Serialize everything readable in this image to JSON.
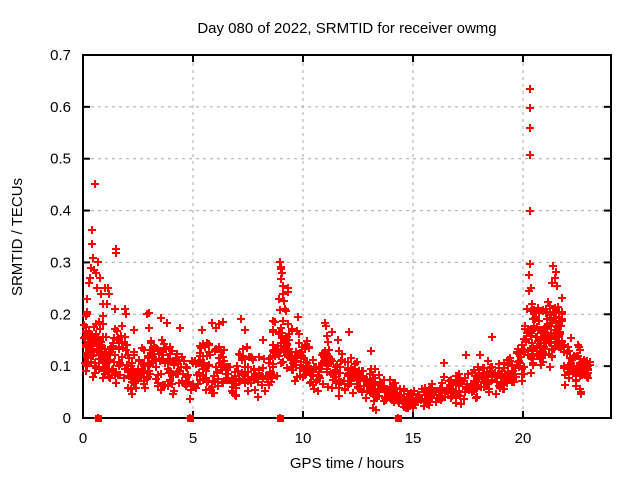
{
  "chart_data": {
    "type": "scatter",
    "title": "Day 080 of 2022, SRMTID for receiver owmg",
    "xlabel": "GPS time / hours",
    "ylabel": "SRMTID / TECUs",
    "xlim": [
      0,
      24
    ],
    "ylim": [
      0,
      0.7
    ],
    "grid": true,
    "legend": "none",
    "marker": "plus",
    "marker_color": "#ff0000",
    "grid_color": "#a8a8a8",
    "frame_color": "#000000",
    "xticks": [
      0,
      5,
      10,
      15,
      20
    ],
    "xtick_labels": [
      "0",
      "5",
      "10",
      "15",
      "20"
    ],
    "yticks": [
      0,
      0.1,
      0.2,
      0.3,
      0.4,
      0.5,
      0.6,
      0.7
    ],
    "ytick_labels": [
      "0",
      "0.1",
      "0.2",
      "0.3",
      "0.4",
      "0.5",
      "0.6",
      "0.7"
    ],
    "cluster_format": [
      "x_start_hours",
      "width_hours",
      "n_points",
      "y_min_TECUs",
      "y_max_TECUs"
    ],
    "clusters": [
      [
        0.05,
        0.25,
        28,
        0.07,
        0.22
      ],
      [
        0.3,
        0.3,
        30,
        0.07,
        0.21
      ],
      [
        0.6,
        0.4,
        32,
        0.06,
        0.2
      ],
      [
        1.0,
        0.5,
        26,
        0.05,
        0.18
      ],
      [
        1.5,
        0.5,
        26,
        0.05,
        0.19
      ],
      [
        2.0,
        0.5,
        22,
        0.03,
        0.14
      ],
      [
        2.5,
        0.5,
        24,
        0.04,
        0.17
      ],
      [
        3.0,
        0.5,
        24,
        0.05,
        0.18
      ],
      [
        3.5,
        0.5,
        24,
        0.04,
        0.17
      ],
      [
        4.0,
        0.5,
        22,
        0.04,
        0.15
      ],
      [
        4.5,
        0.5,
        20,
        0.03,
        0.12
      ],
      [
        5.0,
        0.5,
        22,
        0.04,
        0.15
      ],
      [
        5.5,
        0.5,
        24,
        0.04,
        0.16
      ],
      [
        6.0,
        0.5,
        24,
        0.04,
        0.15
      ],
      [
        6.5,
        0.5,
        22,
        0.03,
        0.11
      ],
      [
        7.0,
        0.5,
        24,
        0.04,
        0.16
      ],
      [
        7.5,
        0.5,
        22,
        0.04,
        0.13
      ],
      [
        8.0,
        0.6,
        26,
        0.04,
        0.13
      ],
      [
        8.6,
        0.7,
        46,
        0.05,
        0.22
      ],
      [
        9.3,
        0.5,
        26,
        0.05,
        0.19
      ],
      [
        9.8,
        0.5,
        26,
        0.05,
        0.17
      ],
      [
        10.3,
        0.5,
        22,
        0.04,
        0.12
      ],
      [
        10.8,
        0.6,
        26,
        0.05,
        0.16
      ],
      [
        11.4,
        0.5,
        24,
        0.04,
        0.14
      ],
      [
        11.9,
        0.5,
        24,
        0.04,
        0.13
      ],
      [
        12.4,
        0.5,
        22,
        0.03,
        0.12
      ],
      [
        12.9,
        0.5,
        22,
        0.03,
        0.11
      ],
      [
        13.4,
        0.45,
        20,
        0.02,
        0.09
      ],
      [
        13.85,
        0.45,
        20,
        0.02,
        0.08
      ],
      [
        14.3,
        0.5,
        20,
        0.01,
        0.06
      ],
      [
        14.8,
        0.5,
        20,
        0.01,
        0.055
      ],
      [
        15.3,
        0.5,
        20,
        0.015,
        0.065
      ],
      [
        15.8,
        0.5,
        20,
        0.02,
        0.07
      ],
      [
        16.3,
        0.5,
        20,
        0.02,
        0.08
      ],
      [
        16.8,
        0.5,
        20,
        0.025,
        0.09
      ],
      [
        17.3,
        0.5,
        20,
        0.03,
        0.1
      ],
      [
        17.8,
        0.5,
        22,
        0.03,
        0.11
      ],
      [
        18.3,
        0.5,
        22,
        0.04,
        0.12
      ],
      [
        18.8,
        0.5,
        22,
        0.04,
        0.12
      ],
      [
        19.3,
        0.4,
        22,
        0.05,
        0.13
      ],
      [
        19.7,
        0.4,
        24,
        0.06,
        0.17
      ],
      [
        20.1,
        0.4,
        30,
        0.07,
        0.22
      ],
      [
        20.5,
        0.4,
        35,
        0.08,
        0.22
      ],
      [
        20.9,
        0.5,
        46,
        0.09,
        0.24
      ],
      [
        21.4,
        0.4,
        40,
        0.1,
        0.25
      ],
      [
        21.8,
        0.5,
        24,
        0.05,
        0.15
      ],
      [
        22.3,
        0.4,
        26,
        0.04,
        0.14
      ],
      [
        22.7,
        0.35,
        22,
        0.06,
        0.125
      ]
    ],
    "outlier_points": [
      [
        0.2,
        0.23
      ],
      [
        0.25,
        0.26
      ],
      [
        0.3,
        0.27
      ],
      [
        0.35,
        0.29
      ],
      [
        0.4,
        0.363
      ],
      [
        0.42,
        0.336
      ],
      [
        0.45,
        0.309
      ],
      [
        0.5,
        0.285
      ],
      [
        0.55,
        0.451
      ],
      [
        0.6,
        0.28
      ],
      [
        0.65,
        0.25
      ],
      [
        0.7,
        0.3
      ],
      [
        0.75,
        0.27
      ],
      [
        0.8,
        0.24
      ],
      [
        0.9,
        0.22
      ],
      [
        1.0,
        0.25
      ],
      [
        1.1,
        0.22
      ],
      [
        1.15,
        0.25
      ],
      [
        1.2,
        0.24
      ],
      [
        1.45,
        0.21
      ],
      [
        1.5,
        0.326
      ],
      [
        1.52,
        0.318
      ],
      [
        1.9,
        0.21
      ],
      [
        1.95,
        0.2
      ],
      [
        2.3,
        0.17
      ],
      [
        2.9,
        0.2
      ],
      [
        3.0,
        0.203
      ],
      [
        3.55,
        0.193
      ],
      [
        3.8,
        0.183
      ],
      [
        4.4,
        0.174
      ],
      [
        5.4,
        0.17
      ],
      [
        5.85,
        0.183
      ],
      [
        6.05,
        0.174
      ],
      [
        6.2,
        0.181
      ],
      [
        6.35,
        0.185
      ],
      [
        7.2,
        0.19
      ],
      [
        7.35,
        0.17
      ],
      [
        8.2,
        0.15
      ],
      [
        8.9,
        0.23
      ],
      [
        8.95,
        0.301
      ],
      [
        8.98,
        0.292
      ],
      [
        9.02,
        0.287
      ],
      [
        9.05,
        0.279
      ],
      [
        9.0,
        0.268
      ],
      [
        9.1,
        0.255
      ],
      [
        9.08,
        0.24
      ],
      [
        9.15,
        0.225
      ],
      [
        9.2,
        0.21
      ],
      [
        9.3,
        0.25
      ],
      [
        9.33,
        0.243
      ],
      [
        9.75,
        0.195
      ],
      [
        11.0,
        0.183
      ],
      [
        11.05,
        0.177
      ],
      [
        11.1,
        0.158
      ],
      [
        11.3,
        0.165
      ],
      [
        11.6,
        0.15
      ],
      [
        12.1,
        0.166
      ],
      [
        13.1,
        0.13
      ],
      [
        13.2,
        0.02
      ],
      [
        13.3,
        0.015
      ],
      [
        16.4,
        0.106
      ],
      [
        17.4,
        0.121
      ],
      [
        18.05,
        0.121
      ],
      [
        18.6,
        0.156
      ],
      [
        20.2,
        0.21
      ],
      [
        20.25,
        0.275
      ],
      [
        20.28,
        0.245
      ],
      [
        20.3,
        0.634
      ],
      [
        20.3,
        0.297
      ],
      [
        20.32,
        0.598
      ],
      [
        20.33,
        0.559
      ],
      [
        20.33,
        0.507
      ],
      [
        20.34,
        0.399
      ],
      [
        20.35,
        0.25
      ],
      [
        20.4,
        0.22
      ],
      [
        20.45,
        0.19
      ],
      [
        21.3,
        0.26
      ],
      [
        21.35,
        0.293
      ],
      [
        21.45,
        0.27
      ],
      [
        21.5,
        0.282
      ],
      [
        21.55,
        0.255
      ],
      [
        22.2,
        0.154
      ],
      [
        22.5,
        0.141
      ],
      [
        22.6,
        0.131
      ]
    ],
    "zero_value_markers_hours": [
      0.68,
      4.86,
      8.97,
      14.32
    ]
  }
}
